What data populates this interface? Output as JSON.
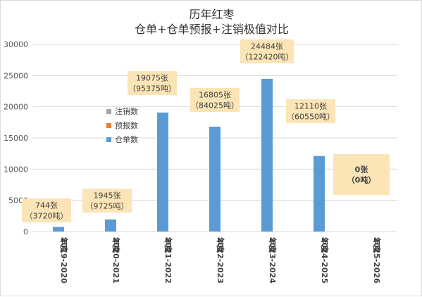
{
  "chart_data": {
    "type": "bar",
    "title": [
      "历年红枣",
      "仓单+仓单预报+注销极值对比"
    ],
    "categories": [
      "2019-2020年度",
      "2020-2021年度",
      "2021-2022年度",
      "2022-2023年度",
      "2023-2024年度",
      "2024-2025年度",
      "2025-2026年度"
    ],
    "series": [
      {
        "name": "仓单数",
        "color": "#5b9bd5",
        "values": [
          744,
          1945,
          19075,
          16805,
          24484,
          12110,
          0
        ]
      },
      {
        "name": "预报数",
        "color": "#ed7d31",
        "values": [
          0,
          0,
          0,
          0,
          0,
          0,
          0
        ]
      },
      {
        "name": "注销数",
        "color": "#a5a5a5",
        "values": [
          0,
          0,
          0,
          0,
          0,
          0,
          0
        ]
      }
    ],
    "legend_order": [
      "注销数",
      "预报数",
      "仓单数"
    ],
    "legend_placement": "top-left, inside plot",
    "data_labels": [
      [
        "744张",
        "（3720吨）"
      ],
      [
        "1945张",
        "（9725吨）"
      ],
      [
        "19075张",
        "（95375吨）"
      ],
      [
        "16805张",
        "（84025吨）"
      ],
      [
        "24484张",
        "（122420吨）"
      ],
      [
        "12110张",
        "（60550吨）"
      ],
      [
        "0张",
        "（0吨）"
      ]
    ],
    "label_box_color": "#fbe5b6",
    "ylim": [
      0,
      30000
    ],
    "yticks": [
      0,
      5000,
      10000,
      15000,
      20000,
      25000,
      30000
    ],
    "grid": true,
    "xlabel": "",
    "ylabel": ""
  }
}
